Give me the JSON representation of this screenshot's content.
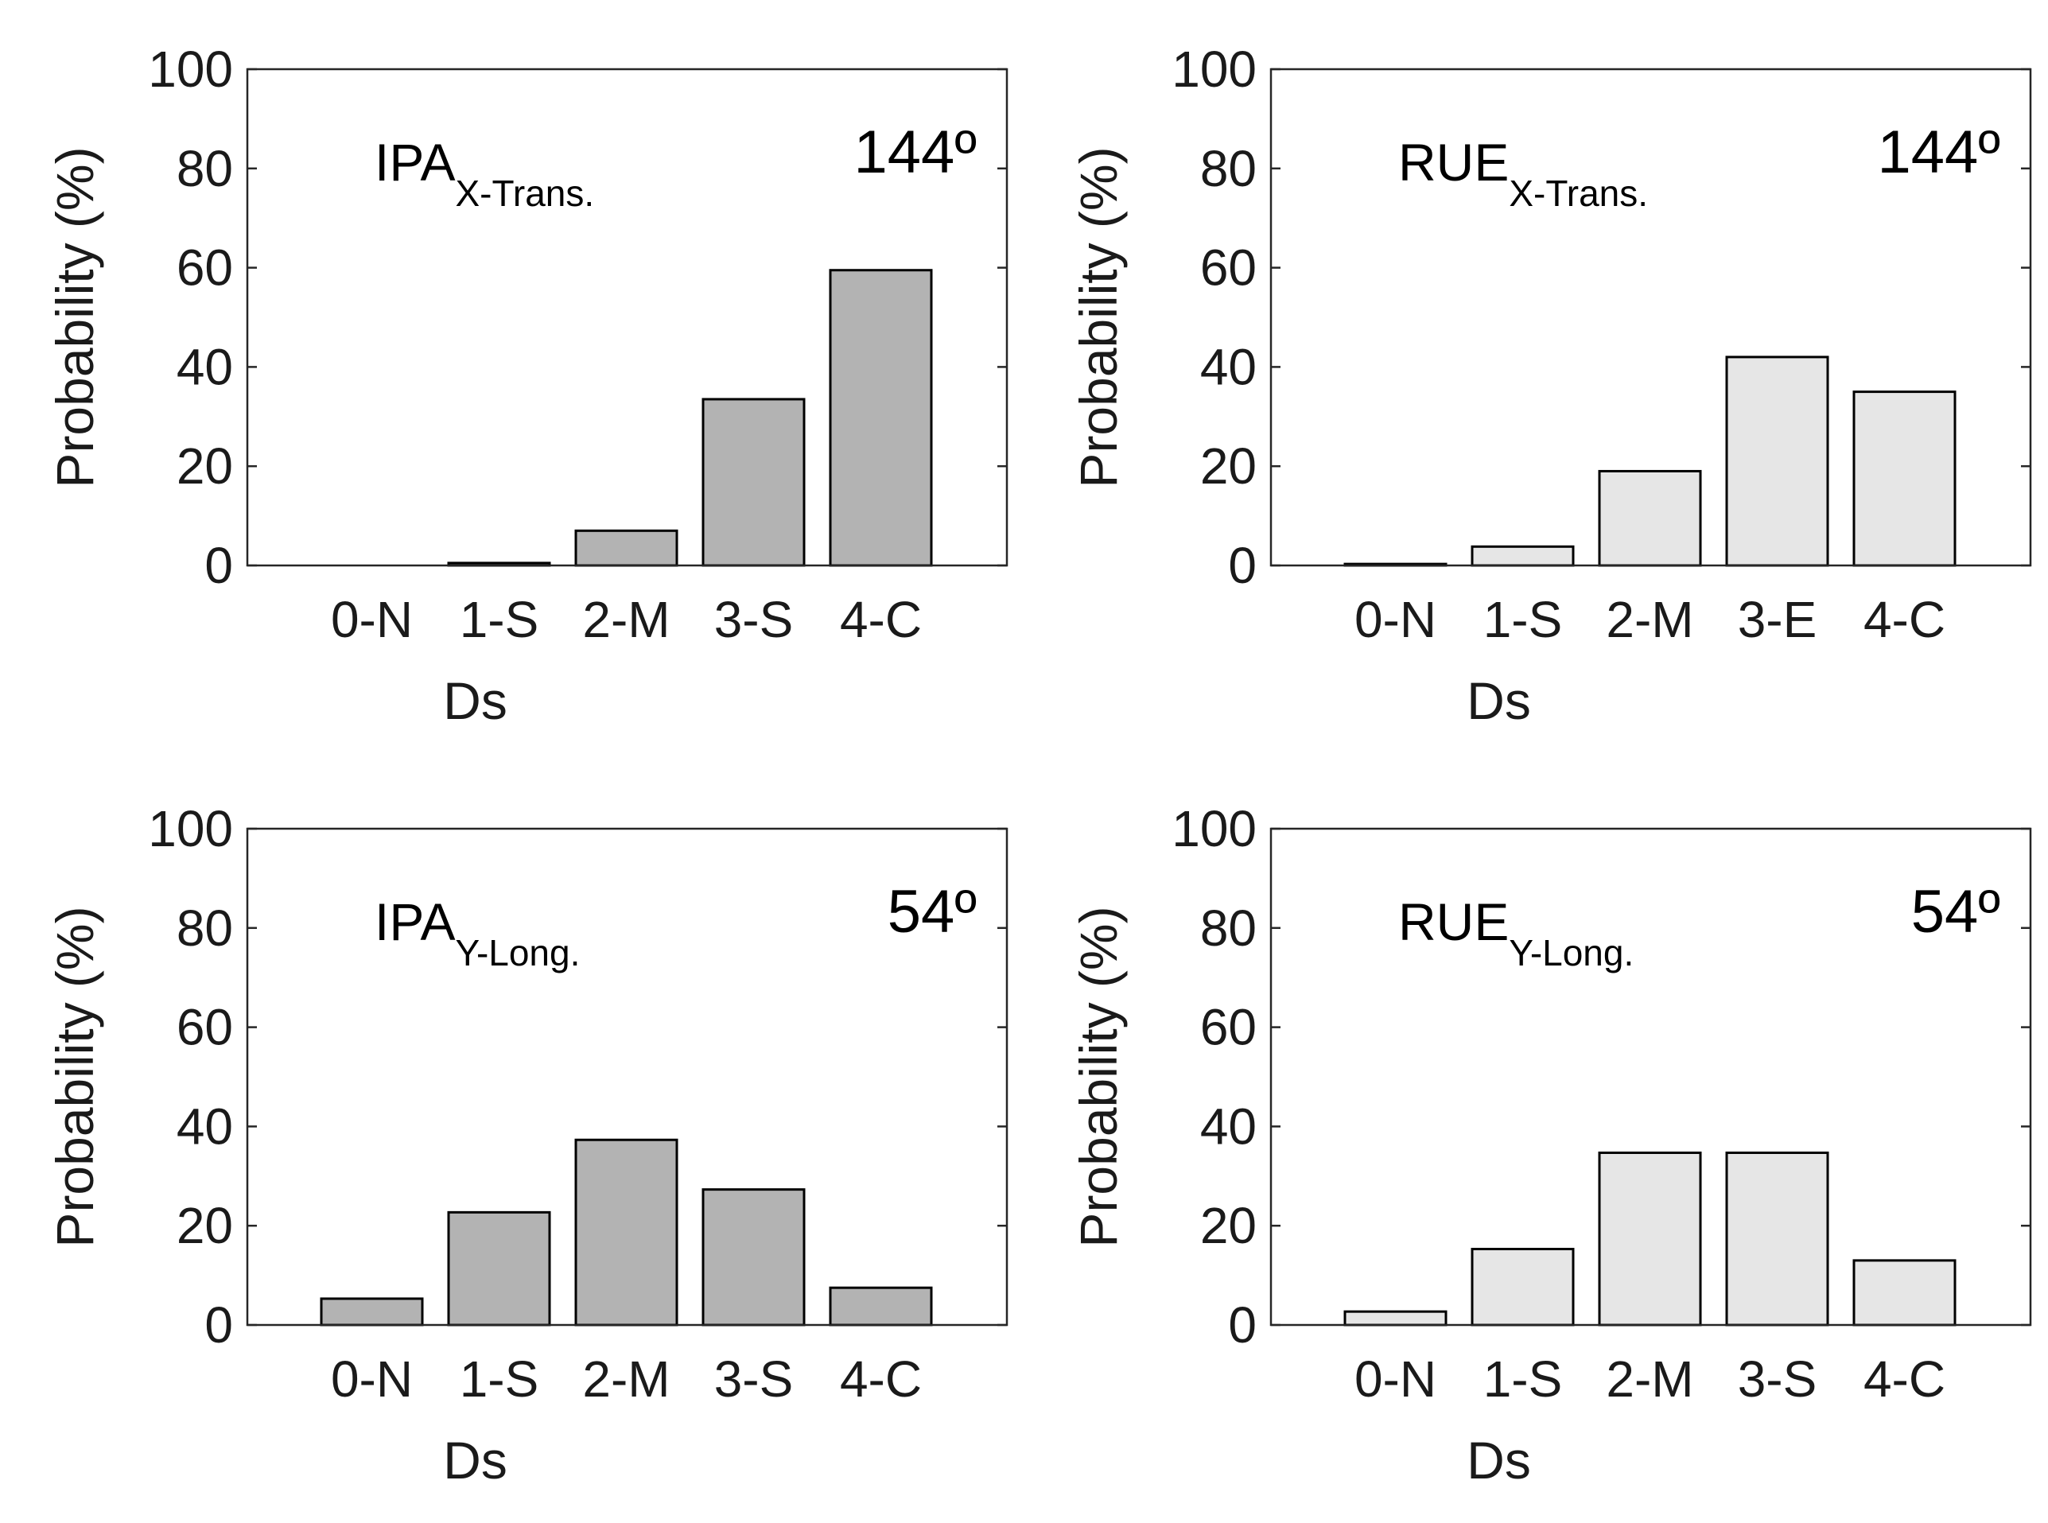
{
  "colors": {
    "ipa_bar": "#b3b3b3",
    "rue_bar": "#e6e6e6",
    "edge": "#000000"
  },
  "chart_data": [
    {
      "type": "bar",
      "panel": "top-left",
      "label_main": "IPA",
      "label_sub": "X-Trans.",
      "angle_label": "144º",
      "categories": [
        "0-N",
        "1-S",
        "2-M",
        "3-S",
        "4-C"
      ],
      "values": [
        0,
        0.5,
        7,
        33.5,
        59.5
      ],
      "xlabel": "Ds",
      "ylabel": "Probability (%)",
      "ylim": [
        0,
        100
      ],
      "yticks": [
        "0",
        "20",
        "40",
        "60",
        "80",
        "100"
      ],
      "bar_color": "#b3b3b3"
    },
    {
      "type": "bar",
      "panel": "top-right",
      "label_main": "RUE",
      "label_sub": "X-Trans.",
      "angle_label": "144º",
      "categories": [
        "0-N",
        "1-S",
        "2-M",
        "3-E",
        "4-C"
      ],
      "values": [
        0.3,
        3.8,
        19,
        42,
        35
      ],
      "xlabel": "Ds",
      "ylabel": "Probability (%)",
      "ylim": [
        0,
        100
      ],
      "yticks": [
        "0",
        "20",
        "40",
        "60",
        "80",
        "100"
      ],
      "bar_color": "#e6e6e6"
    },
    {
      "type": "bar",
      "panel": "bottom-left",
      "label_main": "IPA",
      "label_sub": "Y-Long.",
      "angle_label": "54º",
      "categories": [
        "0-N",
        "1-S",
        "2-M",
        "3-S",
        "4-C"
      ],
      "values": [
        5.3,
        22.7,
        37.3,
        27.3,
        7.5
      ],
      "xlabel": "Ds",
      "ylabel": "Probability (%)",
      "ylim": [
        0,
        100
      ],
      "yticks": [
        "0",
        "20",
        "40",
        "60",
        "80",
        "100"
      ],
      "bar_color": "#b3b3b3"
    },
    {
      "type": "bar",
      "panel": "bottom-right",
      "label_main": "RUE",
      "label_sub": "Y-Long.",
      "angle_label": "54º",
      "categories": [
        "0-N",
        "1-S",
        "2-M",
        "3-S",
        "4-C"
      ],
      "values": [
        2.7,
        15.3,
        34.7,
        34.7,
        13
      ],
      "xlabel": "Ds",
      "ylabel": "Probability (%)",
      "ylim": [
        0,
        100
      ],
      "yticks": [
        "0",
        "20",
        "40",
        "60",
        "80",
        "100"
      ],
      "bar_color": "#e6e6e6"
    }
  ]
}
